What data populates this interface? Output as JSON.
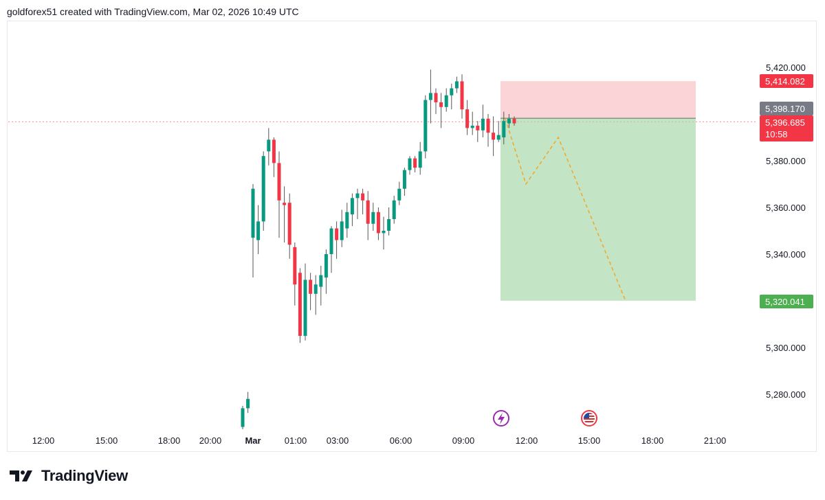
{
  "header": {
    "attribution": "goldforex51 created with TradingView.com, Mar 02, 2026 10:49 UTC"
  },
  "footer": {
    "brand": "TradingView"
  },
  "price_axis": {
    "ticks": [
      "5,420.000",
      "5,380.000",
      "5,360.000",
      "5,340.000",
      "5,300.000",
      "5,280.000"
    ]
  },
  "time_axis": {
    "ticks": [
      "12:00",
      "15:00",
      "18:00",
      "20:00",
      "Mar",
      "01:00",
      "03:00",
      "06:00",
      "09:00",
      "12:00",
      "15:00",
      "18:00",
      "21:00"
    ]
  },
  "price_badges": {
    "stop_loss": {
      "label": "5,414.082",
      "color": "#f23645"
    },
    "reference": {
      "label": "5,398.170",
      "color": "#787b86"
    },
    "last": {
      "label": "5,396.685",
      "countdown": "10:58",
      "color": "#f23645"
    },
    "take_profit": {
      "label": "5,320.041",
      "color": "#4caf50"
    }
  },
  "colors": {
    "up": "#089981",
    "down": "#f23645",
    "projection": "#f5a623"
  },
  "icons": [
    "lightning-event-icon",
    "us-flag-event-icon"
  ],
  "chart_data": {
    "type": "candlestick",
    "symbol_timeframe": "intraday",
    "ylim": [
      5263,
      5432
    ],
    "candles": [
      [
        5266,
        5274,
        5265,
        5275
      ],
      [
        5274,
        5278,
        5272,
        5281
      ],
      [
        5347,
        5368,
        5330,
        5370
      ],
      [
        5346,
        5354,
        5340,
        5361
      ],
      [
        5354,
        5382,
        5350,
        5384
      ],
      [
        5384,
        5389,
        5378,
        5394
      ],
      [
        5389,
        5379,
        5373,
        5390
      ],
      [
        5379,
        5363,
        5347,
        5384
      ],
      [
        5362,
        5361,
        5345,
        5369
      ],
      [
        5362,
        5344,
        5338,
        5366
      ],
      [
        5343,
        5327,
        5318,
        5345
      ],
      [
        5332,
        5305,
        5302,
        5334
      ],
      [
        5305,
        5329,
        5303,
        5336
      ],
      [
        5329,
        5323,
        5316,
        5332
      ],
      [
        5323,
        5327,
        5314,
        5331
      ],
      [
        5326,
        5331,
        5318,
        5335
      ],
      [
        5330,
        5340,
        5323,
        5342
      ],
      [
        5340,
        5351,
        5332,
        5352
      ],
      [
        5351,
        5346,
        5338,
        5354
      ],
      [
        5346,
        5354,
        5343,
        5359
      ],
      [
        5351,
        5358,
        5347,
        5362
      ],
      [
        5357,
        5364,
        5352,
        5366
      ],
      [
        5364,
        5366,
        5355,
        5368
      ],
      [
        5366,
        5363,
        5357,
        5368
      ],
      [
        5363,
        5353,
        5346,
        5367
      ],
      [
        5353,
        5358,
        5350,
        5362
      ],
      [
        5358,
        5349,
        5346,
        5360
      ],
      [
        5349,
        5350,
        5342,
        5356
      ],
      [
        5350,
        5355,
        5348,
        5360
      ],
      [
        5355,
        5363,
        5353,
        5365
      ],
      [
        5363,
        5368,
        5361,
        5371
      ],
      [
        5368,
        5376,
        5365,
        5377
      ],
      [
        5376,
        5381,
        5374,
        5382
      ],
      [
        5381,
        5377,
        5375,
        5382
      ],
      [
        5377,
        5384,
        5374,
        5388
      ],
      [
        5384,
        5406,
        5381,
        5408
      ],
      [
        5406,
        5409,
        5396,
        5419
      ],
      [
        5409,
        5405,
        5400,
        5411
      ],
      [
        5405,
        5403,
        5394,
        5409
      ],
      [
        5403,
        5408,
        5401,
        5411
      ],
      [
        5408,
        5411,
        5402,
        5413
      ],
      [
        5411,
        5414,
        5409,
        5416
      ],
      [
        5414,
        5402,
        5398,
        5417
      ],
      [
        5402,
        5394,
        5391,
        5406
      ],
      [
        5394,
        5395,
        5391,
        5401
      ],
      [
        5395,
        5393,
        5388,
        5397
      ],
      [
        5393,
        5398,
        5390,
        5404
      ],
      [
        5398,
        5392,
        5386,
        5400
      ],
      [
        5392,
        5389,
        5382,
        5399
      ],
      [
        5389,
        5391,
        5388,
        5397
      ],
      [
        5390,
        5397,
        5387,
        5401
      ],
      [
        5396,
        5398,
        5394,
        5400
      ],
      [
        5398,
        5396,
        5395,
        5399
      ]
    ],
    "short_position": {
      "entry": 5398.17,
      "stop": 5414.082,
      "target": 5320.041
    },
    "projection_path": [
      5398,
      5370,
      5390,
      5320
    ]
  }
}
